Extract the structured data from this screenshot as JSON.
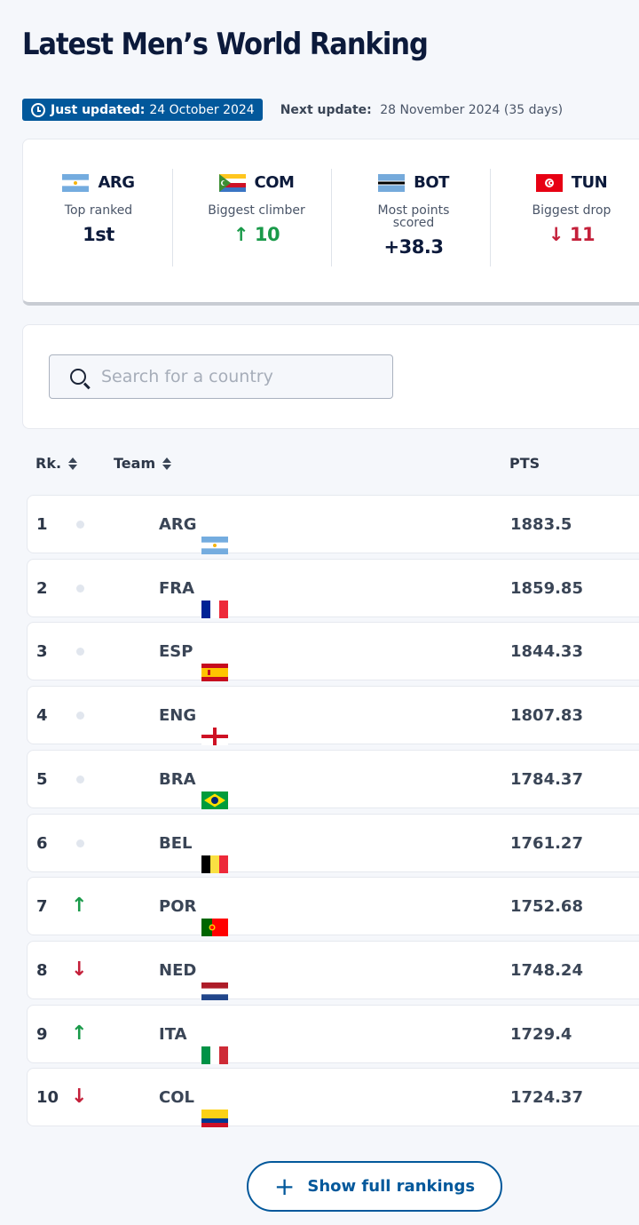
{
  "page": {
    "title": "Latest Men’s World Ranking"
  },
  "updates": {
    "just_updated_label": "Just updated:",
    "just_updated_date": "24 October 2024",
    "next_update_label": "Next update:",
    "next_update_date": "28 November 2024 (35 days)"
  },
  "highlights": [
    {
      "code": "ARG",
      "flag": "ARG",
      "label": "Top ranked",
      "value": "1st",
      "trend": "none"
    },
    {
      "code": "COM",
      "flag": "COM",
      "label": "Biggest climber",
      "value": "10",
      "trend": "up"
    },
    {
      "code": "BOT",
      "flag": "BOT",
      "label": "Most points scored",
      "value": "+38.3",
      "trend": "none"
    },
    {
      "code": "TUN",
      "flag": "TUN",
      "label": "Biggest drop",
      "value": "11",
      "trend": "down"
    }
  ],
  "search": {
    "placeholder": "Search for a country",
    "value": ""
  },
  "table": {
    "headers": {
      "rank": "Rk.",
      "team": "Team",
      "points": "PTS"
    },
    "rows": [
      {
        "rank": "1",
        "trend": "none",
        "code": "ARG",
        "points": "1883.5"
      },
      {
        "rank": "2",
        "trend": "none",
        "code": "FRA",
        "points": "1859.85"
      },
      {
        "rank": "3",
        "trend": "none",
        "code": "ESP",
        "points": "1844.33"
      },
      {
        "rank": "4",
        "trend": "none",
        "code": "ENG",
        "points": "1807.83"
      },
      {
        "rank": "5",
        "trend": "none",
        "code": "BRA",
        "points": "1784.37"
      },
      {
        "rank": "6",
        "trend": "none",
        "code": "BEL",
        "points": "1761.27"
      },
      {
        "rank": "7",
        "trend": "up",
        "code": "POR",
        "points": "1752.68"
      },
      {
        "rank": "8",
        "trend": "down",
        "code": "NED",
        "points": "1748.24"
      },
      {
        "rank": "9",
        "trend": "up",
        "code": "ITA",
        "points": "1729.4"
      },
      {
        "rank": "10",
        "trend": "down",
        "code": "COL",
        "points": "1724.37"
      }
    ]
  },
  "show_full": {
    "label": "Show full rankings",
    "icon": "plus-icon"
  },
  "colors": {
    "brand_blue": "#02589b",
    "up_green": "#1a9a4a",
    "down_red": "#c4203a"
  }
}
